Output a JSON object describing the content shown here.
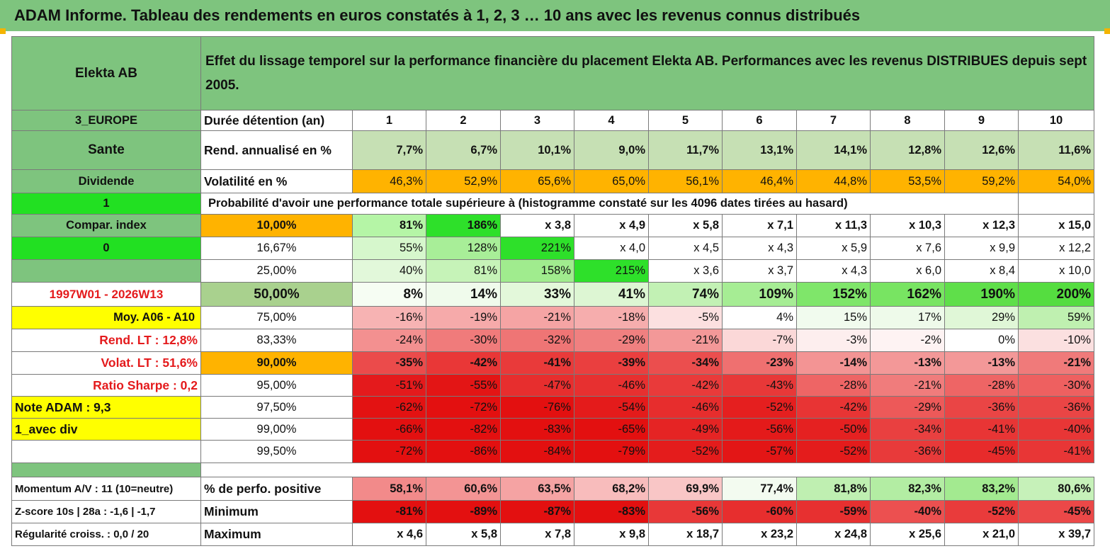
{
  "title": "ADAM Informe. Tableau des rendements en euros constatés à 1, 2, 3 … 10 ans avec les revenus connus distribués",
  "fund_name": "Elekta AB",
  "header_description": "Effet du lissage temporel sur la performance financière du placement Elekta AB. Performances avec les revenus DISTRIBUES depuis sept 2005.",
  "left_panel": {
    "region": "3_EUROPE",
    "sector": "Sante",
    "income": "Dividende",
    "value_one": "1",
    "compar_index": "Compar. index",
    "value_zero": "0",
    "period": "1997W01 - 2026W13",
    "moy": "Moy. A06 - A10",
    "rend_lt": "Rend. LT :   12,8%",
    "volat_lt": "Volat. LT :   51,6%",
    "sharpe": "Ratio Sharpe :    0,2",
    "note": "Note ADAM : 9,3",
    "div_label": "1_avec div",
    "momentum": "Momentum A/V : 11 (10=neutre)",
    "zscore": "Z-score 10s | 28a : -1,6 | -1,7",
    "regularite": "Régularité croiss. : 0,0 / 20"
  },
  "row_labels": {
    "duration": "Durée détention (an)",
    "rend": "Rend. annualisé en %",
    "volat": "Volatilité en %",
    "proba_title": "Probabilité d'avoir une performance totale supérieure à (histogramme constaté sur les 4096 dates tirées au hasard)",
    "pct_positive": "% de perfo. positive",
    "minimum": "Minimum",
    "maximum": "Maximum"
  },
  "years": [
    "1",
    "2",
    "3",
    "4",
    "5",
    "6",
    "7",
    "8",
    "9",
    "10"
  ],
  "rend_values": [
    "7,7%",
    "6,7%",
    "10,1%",
    "9,0%",
    "11,7%",
    "13,1%",
    "14,1%",
    "12,8%",
    "12,6%",
    "11,6%"
  ],
  "volat_values": [
    "46,3%",
    "52,9%",
    "65,6%",
    "65,0%",
    "56,1%",
    "46,4%",
    "44,8%",
    "53,5%",
    "59,2%",
    "54,0%"
  ],
  "probabilities": [
    {
      "label": "10,00%",
      "values": [
        "81%",
        "186%",
        "x 3,8",
        "x 4,9",
        "x 5,8",
        "x 7,1",
        "x 11,3",
        "x 10,3",
        "x 12,3",
        "x 15,0"
      ]
    },
    {
      "label": "16,67%",
      "values": [
        "55%",
        "128%",
        "221%",
        "x 4,0",
        "x 4,5",
        "x 4,3",
        "x 5,9",
        "x 7,6",
        "x 9,9",
        "x 12,2"
      ]
    },
    {
      "label": "25,00%",
      "values": [
        "40%",
        "81%",
        "158%",
        "215%",
        "x 3,6",
        "x 3,7",
        "x 4,3",
        "x 6,0",
        "x 8,4",
        "x 10,0"
      ]
    },
    {
      "label": "50,00%",
      "values": [
        "8%",
        "14%",
        "33%",
        "41%",
        "74%",
        "109%",
        "152%",
        "162%",
        "190%",
        "200%"
      ]
    },
    {
      "label": "75,00%",
      "values": [
        "-16%",
        "-19%",
        "-21%",
        "-18%",
        "-5%",
        "4%",
        "15%",
        "17%",
        "29%",
        "59%"
      ]
    },
    {
      "label": "83,33%",
      "values": [
        "-24%",
        "-30%",
        "-32%",
        "-29%",
        "-21%",
        "-7%",
        "-3%",
        "-2%",
        "0%",
        "-10%"
      ]
    },
    {
      "label": "90,00%",
      "values": [
        "-35%",
        "-42%",
        "-41%",
        "-39%",
        "-34%",
        "-23%",
        "-14%",
        "-13%",
        "-13%",
        "-21%"
      ]
    },
    {
      "label": "95,00%",
      "values": [
        "-51%",
        "-55%",
        "-47%",
        "-46%",
        "-42%",
        "-43%",
        "-28%",
        "-21%",
        "-28%",
        "-30%"
      ]
    },
    {
      "label": "97,50%",
      "values": [
        "-62%",
        "-72%",
        "-76%",
        "-54%",
        "-46%",
        "-52%",
        "-42%",
        "-29%",
        "-36%",
        "-36%"
      ]
    },
    {
      "label": "99,00%",
      "values": [
        "-66%",
        "-82%",
        "-83%",
        "-65%",
        "-49%",
        "-56%",
        "-50%",
        "-34%",
        "-41%",
        "-40%"
      ]
    },
    {
      "label": "99,50%",
      "values": [
        "-72%",
        "-86%",
        "-84%",
        "-79%",
        "-52%",
        "-57%",
        "-52%",
        "-36%",
        "-45%",
        "-41%"
      ]
    }
  ],
  "pct_positive_values": [
    "58,1%",
    "60,6%",
    "63,5%",
    "68,2%",
    "69,9%",
    "77,4%",
    "81,8%",
    "82,3%",
    "83,2%",
    "80,6%"
  ],
  "minimum_values": [
    "-81%",
    "-89%",
    "-87%",
    "-83%",
    "-56%",
    "-60%",
    "-59%",
    "-40%",
    "-52%",
    "-45%"
  ],
  "maximum_values": [
    "x 4,6",
    "x 5,8",
    "x 7,8",
    "x 9,8",
    "x 18,7",
    "x 23,2",
    "x 24,8",
    "x 25,6",
    "x 21,0",
    "x 39,7"
  ],
  "colors": {
    "header_green": "#7ec47e",
    "bright_green": "#22e022",
    "highlight_yellow": "#ffff00",
    "highlight_orange": "#ffb300",
    "label_red": "#e41a1c"
  }
}
